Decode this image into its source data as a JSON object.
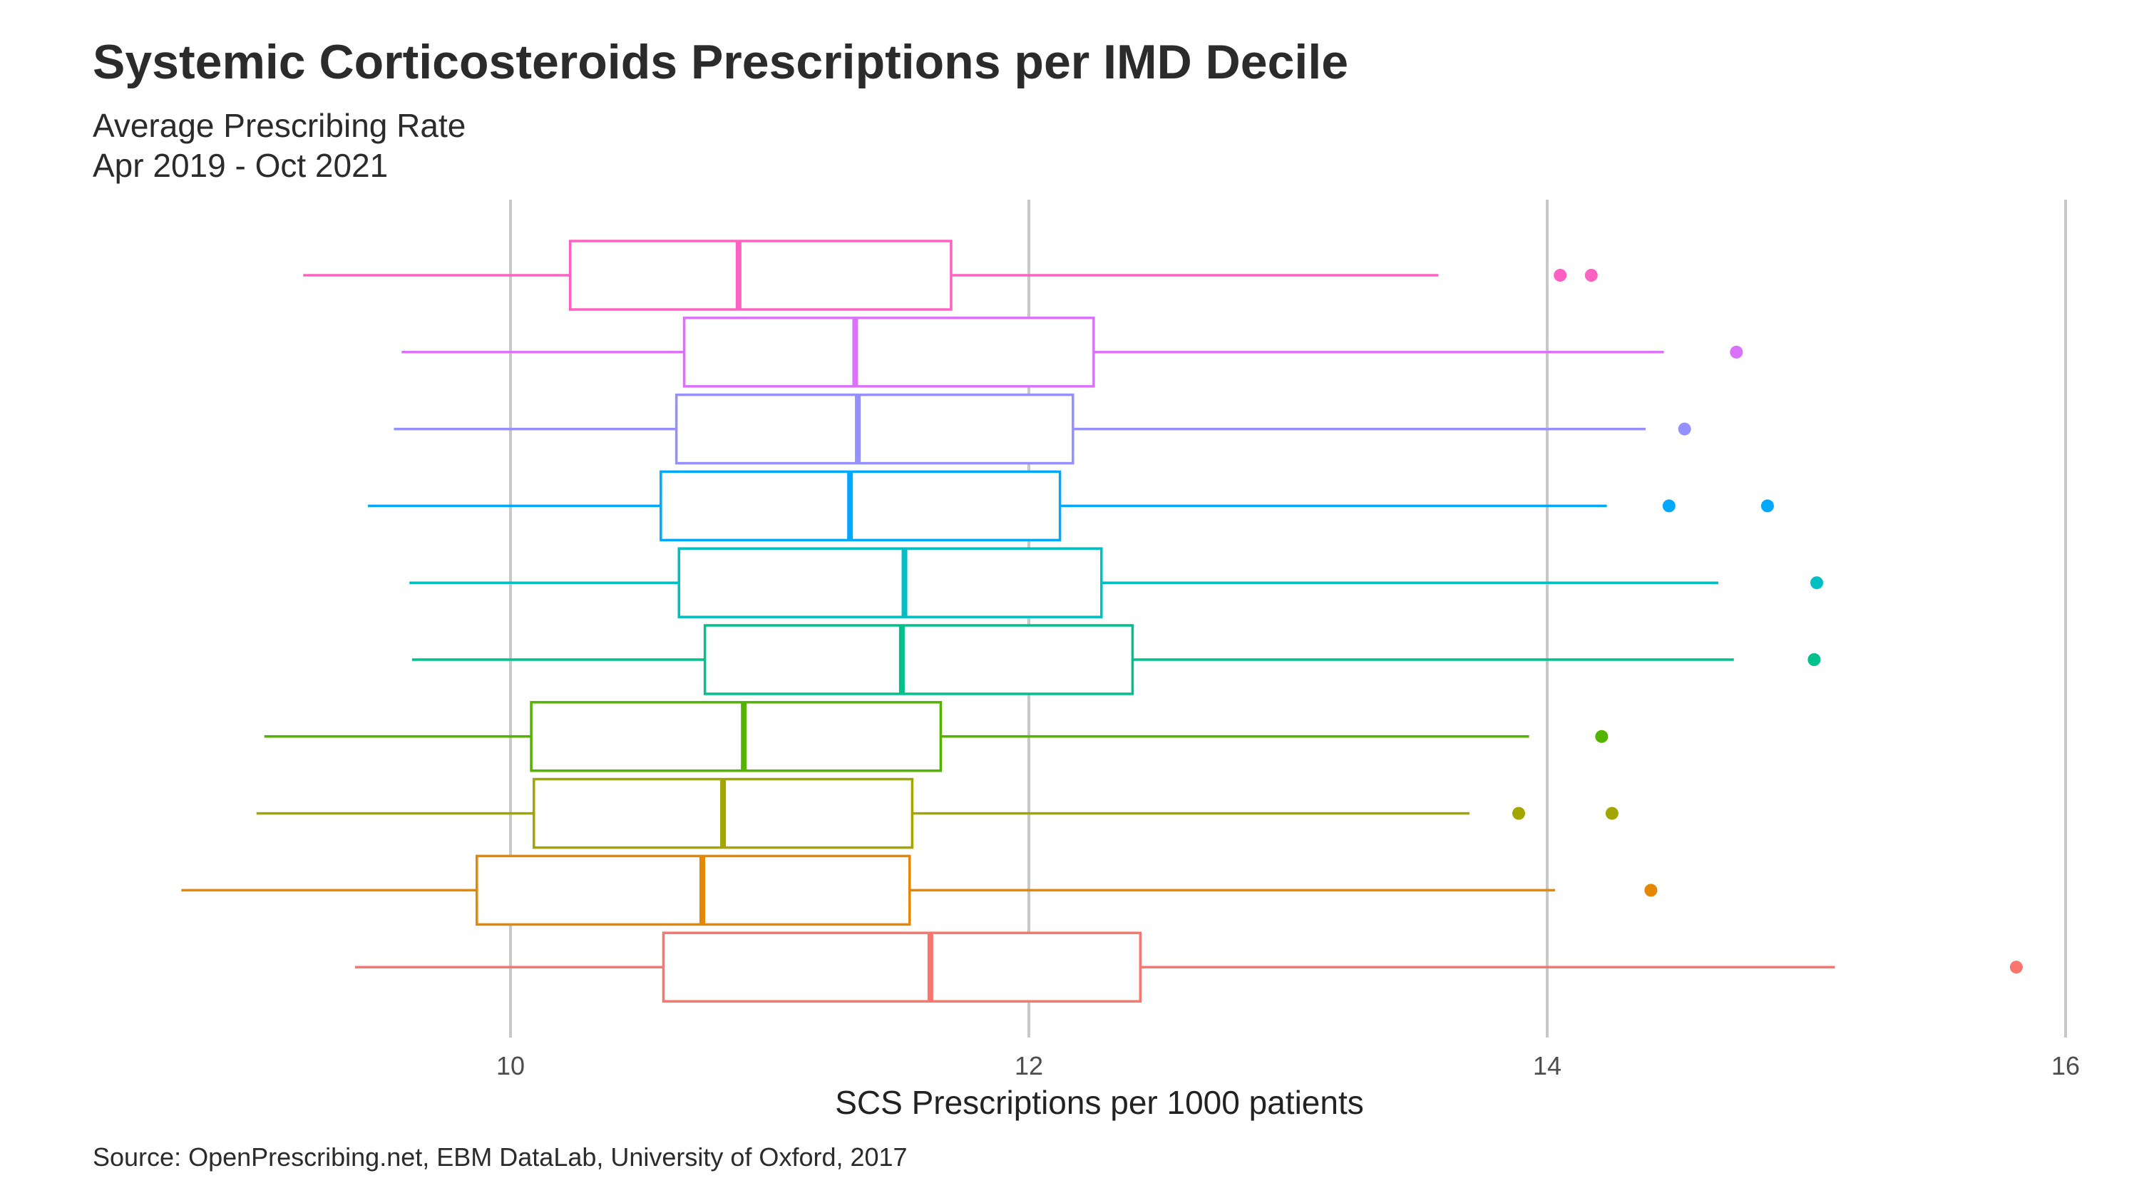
{
  "chart_data": {
    "type": "boxplot",
    "orientation": "horizontal",
    "title": "Systemic Corticosteroids Prescriptions per IMD Decile",
    "subtitle_lines": [
      "Average Prescribing Rate",
      "Apr 2019 - Oct 2021"
    ],
    "xlabel": "SCS Prescriptions per 1000 patients",
    "ylabel": "",
    "xlim": [
      8.0,
      16.0
    ],
    "x_ticks": [
      10,
      12,
      14,
      16
    ],
    "grid": "vertical major",
    "legend": "none",
    "caption": "Source: OpenPrescribing.net, EBM DataLab, University of Oxford, 2017",
    "series": [
      {
        "color": "#FF61C3",
        "whisker_low": 9.2,
        "q1": 10.23,
        "median": 10.88,
        "q3": 11.7,
        "whisker_high": 13.58,
        "outliers": [
          14.05,
          14.17
        ]
      },
      {
        "color": "#DB72FB",
        "whisker_low": 9.58,
        "q1": 10.67,
        "median": 11.33,
        "q3": 12.25,
        "whisker_high": 14.45,
        "outliers": [
          14.73
        ]
      },
      {
        "color": "#9590FF",
        "whisker_low": 9.55,
        "q1": 10.64,
        "median": 11.34,
        "q3": 12.17,
        "whisker_high": 14.38,
        "outliers": [
          14.53
        ]
      },
      {
        "color": "#00A9FF",
        "whisker_low": 9.45,
        "q1": 10.58,
        "median": 11.31,
        "q3": 12.12,
        "whisker_high": 14.23,
        "outliers": [
          14.47,
          14.85
        ]
      },
      {
        "color": "#00BFC4",
        "whisker_low": 9.61,
        "q1": 10.65,
        "median": 11.52,
        "q3": 12.28,
        "whisker_high": 14.66,
        "outliers": [
          15.04
        ]
      },
      {
        "color": "#00C08B",
        "whisker_low": 9.62,
        "q1": 10.75,
        "median": 11.51,
        "q3": 12.4,
        "whisker_high": 14.72,
        "outliers": [
          15.03
        ]
      },
      {
        "color": "#53B400",
        "whisker_low": 9.05,
        "q1": 10.08,
        "median": 10.9,
        "q3": 11.66,
        "whisker_high": 13.93,
        "outliers": [
          14.21
        ]
      },
      {
        "color": "#A3A500",
        "whisker_low": 9.02,
        "q1": 10.09,
        "median": 10.82,
        "q3": 11.55,
        "whisker_high": 13.7,
        "outliers": [
          13.89,
          14.25
        ]
      },
      {
        "color": "#E58700",
        "whisker_low": 8.73,
        "q1": 9.87,
        "median": 10.74,
        "q3": 11.54,
        "whisker_high": 14.03,
        "outliers": [
          14.4
        ]
      },
      {
        "color": "#F8766D",
        "whisker_low": 9.4,
        "q1": 10.59,
        "median": 11.62,
        "q3": 12.43,
        "whisker_high": 15.11,
        "outliers": [
          15.81
        ]
      }
    ]
  }
}
